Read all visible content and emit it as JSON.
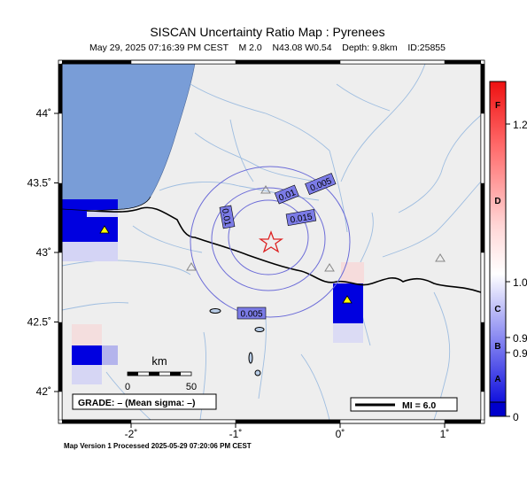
{
  "title": "SISCAN Uncertainty Ratio Map : Pyrenees",
  "subtitle": "May 29, 2025 07:16:39 PM CEST    M 2.0    N43.08 W0.54    Depth: 9.8km    ID:25855",
  "footer": "Map Version 1 Processed 2025-05-29 07:20:06 PM CEST",
  "x_axis": {
    "ticks": [
      {
        "value": -2,
        "label": "-2˚"
      },
      {
        "value": -1,
        "label": "-1˚"
      },
      {
        "value": 0,
        "label": "0˚"
      },
      {
        "value": 1,
        "label": "1˚"
      }
    ]
  },
  "y_axis": {
    "ticks": [
      {
        "value": 44,
        "label": "44˚"
      },
      {
        "value": 43.5,
        "label": "43.5˚"
      },
      {
        "value": 43,
        "label": "43˚"
      },
      {
        "value": 42.5,
        "label": "42.5˚"
      },
      {
        "value": 42,
        "label": "42˚"
      }
    ]
  },
  "contour_labels": [
    "0.005",
    "0.01",
    "0.015",
    "0.01",
    "0.005"
  ],
  "scale_bar": {
    "unit": "km",
    "labels": [
      "0",
      "50"
    ]
  },
  "grade_box": "GRADE: – (Mean sigma: –)",
  "mmi_legend": "MI = 6.0",
  "colorbar": {
    "grade_letters": [
      "F",
      "D",
      "C",
      "B",
      "A"
    ],
    "values": [
      "1.2",
      "1.0",
      "0.9",
      "0.9",
      "0"
    ]
  },
  "colors": {
    "ocean": "#799dd7",
    "land": "#eeeeee",
    "rivers": "#9ebde0",
    "contour": "#6c6cd8",
    "contour_label_bg": "#7b7be6",
    "epicenter": "#dd2222",
    "high": "#0000e0"
  },
  "icons": {
    "epicenter": "star-outline",
    "station": "triangle",
    "active_station": "yellow-triangle"
  }
}
